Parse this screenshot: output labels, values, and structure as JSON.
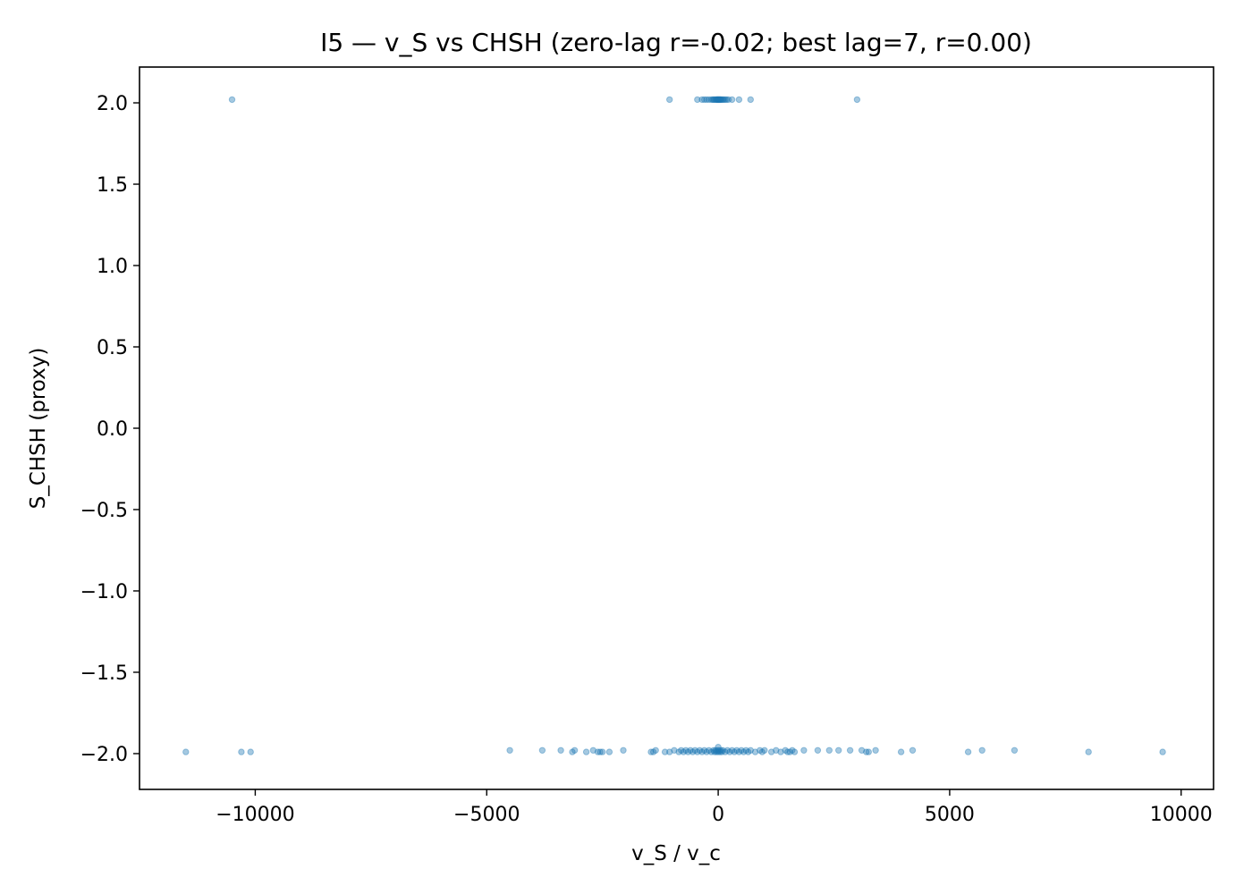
{
  "chart_data": {
    "type": "scatter",
    "title": "I5 — v_S vs CHSH (zero-lag r=-0.02; best lag=7, r=0.00)",
    "xlabel": "v_S / v_c",
    "ylabel": "S_CHSH (proxy)",
    "xlim": [
      -12500,
      10700
    ],
    "ylim": [
      -2.22,
      2.22
    ],
    "xticks": [
      -10000,
      -5000,
      0,
      5000,
      10000
    ],
    "xtick_labels": [
      "−10000",
      "−5000",
      "0",
      "5000",
      "10000"
    ],
    "yticks": [
      2.0,
      1.5,
      1.0,
      0.5,
      0.0,
      -0.5,
      -1.0,
      -1.5,
      -2.0
    ],
    "ytick_labels": [
      "2.0",
      "1.5",
      "1.0",
      "0.5",
      "0.0",
      "−0.5",
      "−1.0",
      "−1.5",
      "−2.0"
    ],
    "grid": false,
    "marker_color": "#1f77b4",
    "marker_alpha": 0.4,
    "series": [
      {
        "x": [
          -10500,
          -1050,
          -450,
          -350,
          -300,
          -250,
          -200,
          -150,
          -120,
          -100,
          -80,
          -60,
          -40,
          -30,
          -20,
          -10,
          0,
          10,
          20,
          30,
          40,
          50,
          60,
          80,
          100,
          120,
          150,
          180,
          220,
          300,
          450,
          700,
          3000
        ],
        "y": [
          2.02,
          2.02,
          2.02,
          2.02,
          2.02,
          2.02,
          2.02,
          2.02,
          2.02,
          2.02,
          2.02,
          2.02,
          2.02,
          2.02,
          2.02,
          2.02,
          2.02,
          2.02,
          2.02,
          2.02,
          2.02,
          2.02,
          2.02,
          2.02,
          2.02,
          2.02,
          2.02,
          2.02,
          2.02,
          2.02,
          2.02,
          2.02,
          2.02
        ]
      },
      {
        "x": [
          -11500,
          -10300,
          -10100,
          -4500,
          -3800,
          -3400,
          -3150,
          -3100,
          -2850,
          -2700,
          -2600,
          -2550,
          -2500,
          -2350,
          -2050,
          -1450,
          -1400,
          -1350,
          -1150,
          -1050,
          -950,
          -850,
          -800,
          -750,
          -700,
          -650,
          -600,
          -550,
          -500,
          -450,
          -400,
          -350,
          -300,
          -250,
          -200,
          -150,
          -100,
          -80,
          -60,
          -40,
          -20,
          0,
          20,
          40,
          60,
          80,
          100,
          150,
          200,
          250,
          300,
          350,
          400,
          450,
          500,
          550,
          600,
          650,
          700,
          800,
          900,
          950,
          1000,
          1150,
          1250,
          1350,
          1450,
          1500,
          1550,
          1600,
          1650,
          1850,
          2150,
          2400,
          2600,
          2850,
          3100,
          3200,
          3250,
          3400,
          3950,
          4200,
          5400,
          5700,
          6400,
          8000,
          9600,
          0
        ],
        "y": [
          -1.99,
          -1.99,
          -1.99,
          -1.98,
          -1.98,
          -1.98,
          -1.99,
          -1.98,
          -1.99,
          -1.98,
          -1.99,
          -1.99,
          -1.99,
          -1.99,
          -1.98,
          -1.99,
          -1.99,
          -1.98,
          -1.99,
          -1.99,
          -1.98,
          -1.99,
          -1.98,
          -1.99,
          -1.98,
          -1.99,
          -1.98,
          -1.99,
          -1.98,
          -1.99,
          -1.98,
          -1.99,
          -1.98,
          -1.99,
          -1.98,
          -1.99,
          -1.98,
          -1.99,
          -1.98,
          -1.99,
          -1.98,
          -1.99,
          -1.98,
          -1.99,
          -1.98,
          -1.99,
          -1.98,
          -1.99,
          -1.98,
          -1.99,
          -1.98,
          -1.99,
          -1.98,
          -1.99,
          -1.98,
          -1.99,
          -1.98,
          -1.99,
          -1.98,
          -1.99,
          -1.98,
          -1.99,
          -1.98,
          -1.99,
          -1.98,
          -1.99,
          -1.98,
          -1.99,
          -1.99,
          -1.98,
          -1.99,
          -1.98,
          -1.98,
          -1.98,
          -1.98,
          -1.98,
          -1.98,
          -1.99,
          -1.99,
          -1.98,
          -1.99,
          -1.98,
          -1.99,
          -1.98,
          -1.98,
          -1.99,
          -1.99,
          -1.96
        ]
      }
    ]
  }
}
